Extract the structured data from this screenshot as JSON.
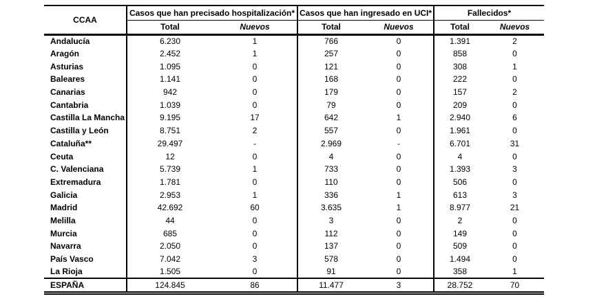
{
  "colors": {
    "text": "#000000",
    "border": "#000000",
    "background": "#ffffff"
  },
  "table": {
    "header": {
      "ccaa_label": "CCAA",
      "groups": [
        {
          "label": "Casos que han precisado hospitalización*"
        },
        {
          "label": "Casos que han ingresado en UCI*"
        },
        {
          "label": "Fallecidos*"
        }
      ],
      "subheaders": {
        "total": "Total",
        "nuevos": "Nuevos"
      }
    },
    "rows": [
      {
        "region": "Andalucía",
        "hosp_total": "6.230",
        "hosp_new": "1",
        "icu_total": "766",
        "icu_new": "0",
        "deaths_total": "1.391",
        "deaths_new": "2"
      },
      {
        "region": "Aragón",
        "hosp_total": "2.452",
        "hosp_new": "1",
        "icu_total": "257",
        "icu_new": "0",
        "deaths_total": "858",
        "deaths_new": "0"
      },
      {
        "region": "Asturias",
        "hosp_total": "1.095",
        "hosp_new": "0",
        "icu_total": "121",
        "icu_new": "0",
        "deaths_total": "308",
        "deaths_new": "1"
      },
      {
        "region": "Baleares",
        "hosp_total": "1.141",
        "hosp_new": "0",
        "icu_total": "168",
        "icu_new": "0",
        "deaths_total": "222",
        "deaths_new": "0"
      },
      {
        "region": "Canarias",
        "hosp_total": "942",
        "hosp_new": "0",
        "icu_total": "179",
        "icu_new": "0",
        "deaths_total": "157",
        "deaths_new": "2"
      },
      {
        "region": "Cantabria",
        "hosp_total": "1.039",
        "hosp_new": "0",
        "icu_total": "79",
        "icu_new": "0",
        "deaths_total": "209",
        "deaths_new": "0"
      },
      {
        "region": "Castilla La Mancha",
        "hosp_total": "9.195",
        "hosp_new": "17",
        "icu_total": "642",
        "icu_new": "1",
        "deaths_total": "2.940",
        "deaths_new": "6"
      },
      {
        "region": "Castilla y León",
        "hosp_total": "8.751",
        "hosp_new": "2",
        "icu_total": "557",
        "icu_new": "0",
        "deaths_total": "1.961",
        "deaths_new": "0"
      },
      {
        "region": "Cataluña**",
        "hosp_total": "29.497",
        "hosp_new": "-",
        "icu_total": "2.969",
        "icu_new": "-",
        "deaths_total": "6.701",
        "deaths_new": "31"
      },
      {
        "region": "Ceuta",
        "hosp_total": "12",
        "hosp_new": "0",
        "icu_total": "4",
        "icu_new": "0",
        "deaths_total": "4",
        "deaths_new": "0"
      },
      {
        "region": "C. Valenciana",
        "hosp_total": "5.739",
        "hosp_new": "1",
        "icu_total": "733",
        "icu_new": "0",
        "deaths_total": "1.393",
        "deaths_new": "3"
      },
      {
        "region": "Extremadura",
        "hosp_total": "1.781",
        "hosp_new": "0",
        "icu_total": "110",
        "icu_new": "0",
        "deaths_total": "506",
        "deaths_new": "0"
      },
      {
        "region": "Galicia",
        "hosp_total": "2.953",
        "hosp_new": "1",
        "icu_total": "336",
        "icu_new": "1",
        "deaths_total": "613",
        "deaths_new": "3"
      },
      {
        "region": "Madrid",
        "hosp_total": "42.692",
        "hosp_new": "60",
        "icu_total": "3.635",
        "icu_new": "1",
        "deaths_total": "8.977",
        "deaths_new": "21"
      },
      {
        "region": "Melilla",
        "hosp_total": "44",
        "hosp_new": "0",
        "icu_total": "3",
        "icu_new": "0",
        "deaths_total": "2",
        "deaths_new": "0"
      },
      {
        "region": "Murcia",
        "hosp_total": "685",
        "hosp_new": "0",
        "icu_total": "112",
        "icu_new": "0",
        "deaths_total": "149",
        "deaths_new": "0"
      },
      {
        "region": "Navarra",
        "hosp_total": "2.050",
        "hosp_new": "0",
        "icu_total": "137",
        "icu_new": "0",
        "deaths_total": "509",
        "deaths_new": "0"
      },
      {
        "region": "País Vasco",
        "hosp_total": "7.042",
        "hosp_new": "3",
        "icu_total": "578",
        "icu_new": "0",
        "deaths_total": "1.494",
        "deaths_new": "0"
      },
      {
        "region": "La Rioja",
        "hosp_total": "1.505",
        "hosp_new": "0",
        "icu_total": "91",
        "icu_new": "0",
        "deaths_total": "358",
        "deaths_new": "1"
      }
    ],
    "footer": {
      "region": "ESPAÑA",
      "hosp_total": "124.845",
      "hosp_new": "86",
      "icu_total": "11.477",
      "icu_new": "3",
      "deaths_total": "28.752",
      "deaths_new": "70"
    }
  }
}
